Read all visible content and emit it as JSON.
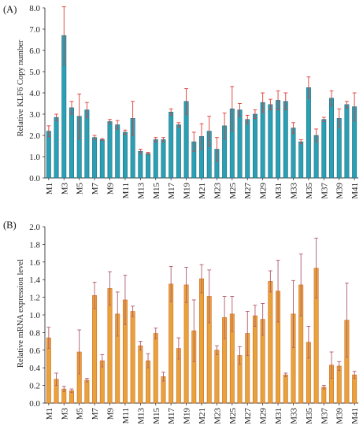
{
  "chart_data": [
    {
      "type": "bar",
      "panel_label": "(A)",
      "title": "",
      "xlabel": "",
      "ylabel": "Relative KLF6 Copy number",
      "ylim": [
        0,
        8
      ],
      "yticks": [
        "0.0",
        "1.0",
        "2.0",
        "3.0",
        "4.0",
        "5.0",
        "6.0",
        "7.0",
        "8.0"
      ],
      "categories": [
        "M1",
        "M2",
        "M3",
        "M4",
        "M5",
        "M6",
        "M7",
        "M8",
        "M9",
        "M10",
        "M11",
        "M12",
        "M13",
        "M14",
        "M15",
        "M16",
        "M17",
        "M18",
        "M19",
        "M20",
        "M21",
        "M22",
        "M23",
        "M24",
        "M25",
        "M26",
        "M27",
        "M28",
        "M29",
        "M30",
        "M31",
        "M32",
        "M33",
        "M34",
        "M35",
        "M36",
        "M37",
        "M38",
        "M39",
        "M40",
        "M41"
      ],
      "visible_tick_labels": [
        "M1",
        "M3",
        "M5",
        "M7",
        "M9",
        "M11",
        "M13",
        "M15",
        "M17",
        "M19",
        "M21",
        "M23",
        "M25",
        "M27",
        "M29",
        "M31",
        "M33",
        "M35",
        "M37",
        "M39",
        "M41"
      ],
      "values": [
        2.2,
        2.85,
        6.7,
        3.3,
        2.9,
        3.2,
        1.9,
        1.8,
        2.65,
        2.5,
        2.15,
        2.8,
        1.25,
        1.15,
        1.8,
        1.8,
        3.1,
        2.5,
        3.6,
        1.7,
        1.95,
        2.2,
        1.35,
        2.45,
        3.25,
        3.2,
        2.75,
        3.0,
        3.55,
        3.45,
        3.65,
        3.6,
        2.35,
        1.7,
        4.25,
        2.0,
        2.75,
        3.75,
        2.8,
        3.45,
        3.35
      ],
      "errors": [
        0.25,
        0.15,
        1.35,
        0.3,
        1.05,
        0.35,
        0.1,
        0.05,
        0.1,
        0.2,
        0.1,
        0.8,
        0.1,
        0.05,
        0.1,
        0.1,
        0.15,
        0.1,
        0.6,
        0.45,
        0.6,
        0.7,
        0.55,
        0.6,
        1.05,
        0.3,
        0.2,
        0.2,
        0.45,
        0.25,
        0.45,
        0.4,
        0.25,
        0.1,
        0.5,
        0.3,
        0.1,
        0.35,
        0.45,
        0.15,
        0.65
      ],
      "bar_color": "#2ba0b4",
      "bar_edge_color": "#1b6d80",
      "error_color": "#e03a32"
    },
    {
      "type": "bar",
      "panel_label": "(B)",
      "title": "",
      "xlabel": "",
      "ylabel": "Relative mRNA expression level",
      "ylim": [
        0,
        2
      ],
      "yticks": [
        "0.0",
        "0.2",
        "0.4",
        "0.6",
        "0.8",
        "1.0",
        "1.2",
        "1.4",
        "1.6",
        "1.8",
        "2.0"
      ],
      "categories": [
        "M1",
        "M2",
        "M3",
        "M4",
        "M5",
        "M6",
        "M7",
        "M8",
        "M9",
        "M10",
        "M11",
        "M12",
        "M13",
        "M14",
        "M15",
        "M16",
        "M17",
        "M18",
        "M19",
        "M20",
        "M21",
        "M22",
        "M23",
        "M24",
        "M25",
        "M26",
        "M27",
        "M28",
        "M29",
        "M30",
        "M31",
        "M32",
        "M33",
        "M34",
        "M35",
        "M36",
        "M37",
        "M38",
        "M39",
        "M40",
        "M41"
      ],
      "visible_tick_labels": [
        "M1",
        "M3",
        "M5",
        "M7",
        "M9",
        "M11",
        "M13",
        "M15",
        "M17",
        "M19",
        "M21",
        "M23",
        "M25",
        "M27",
        "M29",
        "M31",
        "M33",
        "M35",
        "M37",
        "M39",
        "M41"
      ],
      "values": [
        0.74,
        0.27,
        0.16,
        0.14,
        0.58,
        0.26,
        1.22,
        0.48,
        1.3,
        1.01,
        1.17,
        1.04,
        0.65,
        0.48,
        0.79,
        0.3,
        1.35,
        0.62,
        1.34,
        0.82,
        1.41,
        1.21,
        0.6,
        0.97,
        1.01,
        0.54,
        0.79,
        0.99,
        0.95,
        1.38,
        1.27,
        0.32,
        1.01,
        1.34,
        0.69,
        1.53,
        0.18,
        0.43,
        0.42,
        0.94,
        0.32
      ],
      "errors": [
        0.12,
        0.07,
        0.03,
        0.02,
        0.25,
        0.02,
        0.15,
        0.07,
        0.19,
        0.25,
        0.28,
        0.06,
        0.05,
        0.08,
        0.06,
        0.05,
        0.2,
        0.12,
        0.2,
        0.35,
        0.16,
        0.3,
        0.05,
        0.24,
        0.2,
        0.1,
        0.25,
        0.12,
        0.18,
        0.12,
        0.35,
        0.02,
        0.38,
        0.35,
        0.18,
        0.34,
        0.02,
        0.15,
        0.05,
        0.42,
        0.04
      ],
      "bar_color": "#e8a23c",
      "bar_edge_color": "#d2691e",
      "error_color": "#b05a6a"
    }
  ]
}
